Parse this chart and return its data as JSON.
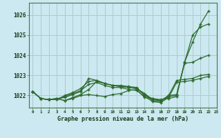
{
  "title": "Graphe pression niveau de la mer (hPa)",
  "background_color": "#cce8f0",
  "grid_color": "#aacccc",
  "line_color": "#2d6a2d",
  "xlim": [
    -0.5,
    23
  ],
  "ylim": [
    1021.4,
    1026.6
  ],
  "yticks": [
    1022,
    1023,
    1024,
    1025,
    1026
  ],
  "xtick_labels": [
    "0",
    "1",
    "2",
    "3",
    "4",
    "5",
    "6",
    "7",
    "8",
    "9",
    "10",
    "11",
    "12",
    "13",
    "14",
    "15",
    "16",
    "17",
    "18",
    "19",
    "20",
    "21",
    "22",
    "23"
  ],
  "series": [
    [
      1022.2,
      1021.85,
      1021.8,
      1021.85,
      1021.75,
      1021.85,
      1022.0,
      1022.05,
      1022.0,
      1021.95,
      1022.05,
      1022.1,
      1022.25,
      1022.3,
      1021.9,
      1021.85,
      1021.8,
      1021.85,
      1021.95,
      1023.65,
      1024.65,
      1025.55,
      1026.2
    ],
    [
      1022.2,
      1021.85,
      1021.8,
      1021.85,
      1021.75,
      1021.9,
      1022.05,
      1022.3,
      1022.7,
      1022.6,
      1022.5,
      1022.5,
      1022.45,
      1022.4,
      1022.0,
      1021.85,
      1021.75,
      1022.0,
      1022.05,
      1023.65,
      1025.0,
      1025.4,
      1025.55
    ],
    [
      1022.2,
      1021.85,
      1021.8,
      1021.85,
      1021.9,
      1022.05,
      1022.2,
      1022.85,
      1022.75,
      1022.6,
      1022.5,
      1022.45,
      1022.4,
      1022.35,
      1022.1,
      1021.8,
      1021.75,
      1021.95,
      1022.0,
      1023.6,
      1023.65,
      1023.85,
      1024.0
    ],
    [
      1022.2,
      1021.85,
      1021.8,
      1021.8,
      1022.0,
      1022.15,
      1022.35,
      1022.7,
      1022.75,
      1022.6,
      1022.5,
      1022.45,
      1022.4,
      1022.35,
      1022.05,
      1021.75,
      1021.7,
      1022.0,
      1022.75,
      1022.8,
      1022.85,
      1023.0,
      1023.05
    ],
    [
      1022.2,
      1021.85,
      1021.8,
      1021.8,
      1021.95,
      1022.1,
      1022.25,
      1022.55,
      1022.65,
      1022.5,
      1022.4,
      1022.4,
      1022.3,
      1022.25,
      1021.95,
      1021.7,
      1021.65,
      1021.9,
      1022.65,
      1022.7,
      1022.75,
      1022.85,
      1022.95
    ]
  ]
}
